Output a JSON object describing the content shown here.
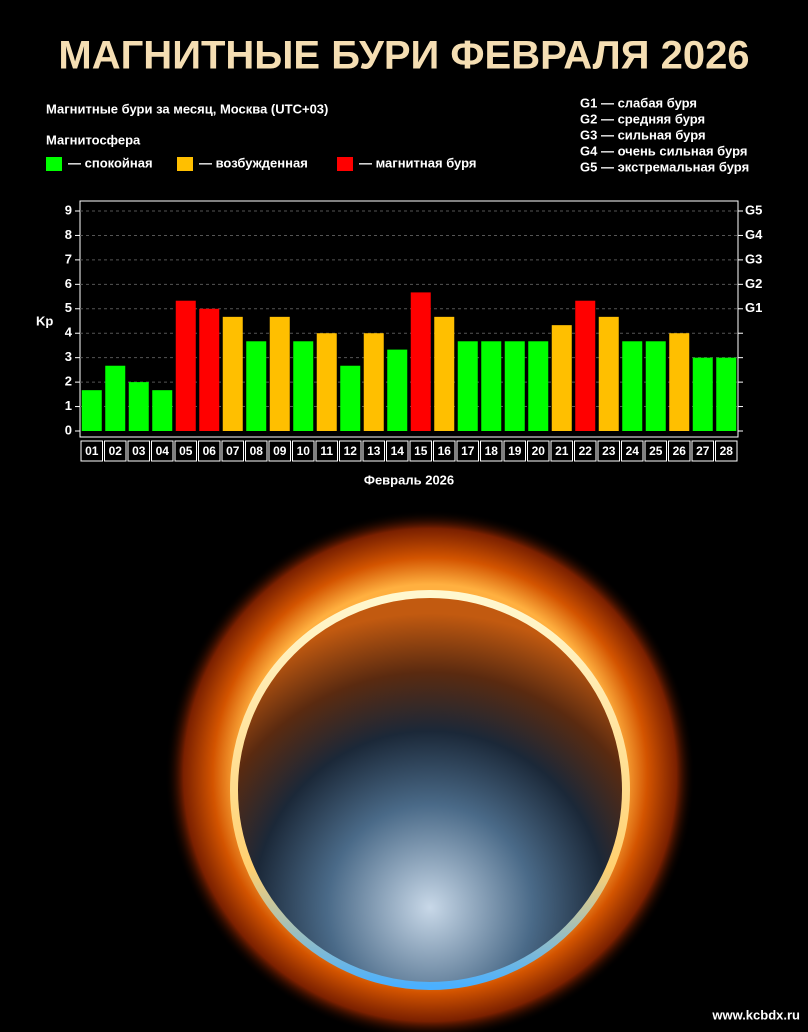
{
  "header": {
    "title": "МАГНИТНЫЕ БУРИ ФЕВРАЛЯ 2026"
  },
  "chart_data": {
    "type": "bar",
    "title": "Магнитные бури за месяц, Москва (UTC+03)",
    "legend_title": "Магнитосфера",
    "legend": [
      {
        "label": "— спокойная",
        "color": "#00ff00"
      },
      {
        "label": "— возбужденная",
        "color": "#ffbf00"
      },
      {
        "label": "— магнитная буря",
        "color": "#ff0000"
      }
    ],
    "g_legend": [
      "G1 — слабая буря",
      "G2 — средняя буря",
      "G3 — сильная буря",
      "G4 — очень сильная буря",
      "G5 — экстремальная буря"
    ],
    "ylabel": "Kp",
    "xlabel": "Февраль 2026",
    "categories": [
      "01",
      "02",
      "03",
      "04",
      "05",
      "06",
      "07",
      "08",
      "09",
      "10",
      "11",
      "12",
      "13",
      "14",
      "15",
      "16",
      "17",
      "18",
      "19",
      "20",
      "21",
      "22",
      "23",
      "24",
      "25",
      "26",
      "27",
      "28"
    ],
    "values": [
      1.67,
      2.67,
      2.0,
      1.67,
      5.33,
      5.0,
      4.67,
      3.67,
      4.67,
      3.67,
      4.0,
      2.67,
      4.0,
      3.33,
      5.67,
      4.67,
      3.67,
      3.67,
      3.67,
      3.67,
      4.33,
      5.33,
      4.67,
      3.67,
      3.67,
      4.0,
      3.0,
      3.0
    ],
    "colors": [
      "#00ff00",
      "#00ff00",
      "#00ff00",
      "#00ff00",
      "#ff0000",
      "#ff0000",
      "#ffbf00",
      "#00ff00",
      "#ffbf00",
      "#00ff00",
      "#ffbf00",
      "#00ff00",
      "#ffbf00",
      "#00ff00",
      "#ff0000",
      "#ffbf00",
      "#00ff00",
      "#00ff00",
      "#00ff00",
      "#00ff00",
      "#ffbf00",
      "#ff0000",
      "#ffbf00",
      "#00ff00",
      "#00ff00",
      "#ffbf00",
      "#00ff00",
      "#00ff00"
    ],
    "ylim": [
      0,
      9
    ],
    "yticks": [
      0,
      1,
      2,
      3,
      4,
      5,
      6,
      7,
      8,
      9
    ],
    "y2lim": [
      0,
      9
    ],
    "y2ticks": [
      {
        "value": 5,
        "label": "G1"
      },
      {
        "value": 6,
        "label": "G2"
      },
      {
        "value": 7,
        "label": "G3"
      },
      {
        "value": 8,
        "label": "G4"
      },
      {
        "value": 9,
        "label": "G5"
      }
    ],
    "grid": true
  },
  "footer": {
    "watermark": "www.kcbdx.ru"
  }
}
